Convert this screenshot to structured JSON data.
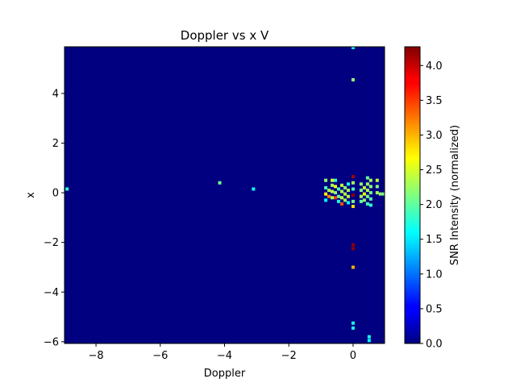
{
  "chart_data": {
    "type": "heatmap",
    "title": "Doppler vs x V",
    "xlabel": "Doppler",
    "ylabel": "x",
    "xlim": [
      -8.98,
      0.98
    ],
    "ylim": [
      -6.07,
      5.88
    ],
    "xticks": [
      -8,
      -6,
      -4,
      -2,
      0
    ],
    "xtick_labels": [
      "−8",
      "−6",
      "−4",
      "−2",
      "0"
    ],
    "yticks": [
      -6,
      -4,
      -2,
      0,
      2,
      4
    ],
    "ytick_labels": [
      "−6",
      "−4",
      "−2",
      "0",
      "2",
      "4"
    ],
    "background_value": 0.0,
    "colormap": "jet",
    "colorbar": {
      "label": "SNR Intensity (normalized)",
      "range": [
        0.0,
        4.27
      ],
      "ticks": [
        0.0,
        0.5,
        1.0,
        1.5,
        2.0,
        2.5,
        3.0,
        3.5,
        4.0
      ],
      "tick_labels": [
        "0.0",
        "0.5",
        "1.0",
        "1.5",
        "2.0",
        "2.5",
        "3.0",
        "3.5",
        "4.0"
      ]
    },
    "cell_size": {
      "doppler": 0.1,
      "x": 0.13
    },
    "cells": [
      {
        "doppler": -8.9,
        "x": 0.15,
        "value": 1.8
      },
      {
        "doppler": -4.15,
        "x": 0.4,
        "value": 2.1
      },
      {
        "doppler": -3.1,
        "x": 0.15,
        "value": 1.7
      },
      {
        "doppler": -0.85,
        "x": 0.5,
        "value": 2.2
      },
      {
        "doppler": -0.85,
        "x": 0.2,
        "value": 1.9
      },
      {
        "doppler": -0.85,
        "x": -0.05,
        "value": 2.7
      },
      {
        "doppler": -0.85,
        "x": -0.3,
        "value": 1.6
      },
      {
        "doppler": -0.75,
        "x": 0.1,
        "value": 2.3
      },
      {
        "doppler": -0.75,
        "x": -0.15,
        "value": 3.2
      },
      {
        "doppler": -0.65,
        "x": 0.5,
        "value": 2.5
      },
      {
        "doppler": -0.65,
        "x": 0.3,
        "value": 2.3
      },
      {
        "doppler": -0.65,
        "x": 0.05,
        "value": 2.4
      },
      {
        "doppler": -0.65,
        "x": -0.2,
        "value": 2.3
      },
      {
        "doppler": -0.55,
        "x": 0.5,
        "value": 1.8
      },
      {
        "doppler": -0.55,
        "x": 0.25,
        "value": 2.6
      },
      {
        "doppler": -0.55,
        "x": 0.0,
        "value": 2.2
      },
      {
        "doppler": -0.55,
        "x": -0.2,
        "value": 3.5
      },
      {
        "doppler": -0.45,
        "x": 0.15,
        "value": 1.9
      },
      {
        "doppler": -0.45,
        "x": -0.15,
        "value": 2.0
      },
      {
        "doppler": -0.45,
        "x": -0.35,
        "value": 1.7
      },
      {
        "doppler": -0.35,
        "x": 0.3,
        "value": 2.4
      },
      {
        "doppler": -0.35,
        "x": 0.05,
        "value": 2.3
      },
      {
        "doppler": -0.35,
        "x": -0.2,
        "value": 2.4
      },
      {
        "doppler": -0.35,
        "x": -0.45,
        "value": 3.4
      },
      {
        "doppler": -0.25,
        "x": 0.2,
        "value": 2.2
      },
      {
        "doppler": -0.25,
        "x": -0.05,
        "value": 2.4
      },
      {
        "doppler": -0.25,
        "x": -0.3,
        "value": 2.3
      },
      {
        "doppler": -0.15,
        "x": 0.35,
        "value": 1.7
      },
      {
        "doppler": -0.15,
        "x": 0.1,
        "value": 2.3
      },
      {
        "doppler": -0.15,
        "x": -0.15,
        "value": 2.4
      },
      {
        "doppler": -0.15,
        "x": -0.4,
        "value": 1.6
      },
      {
        "doppler": 0.0,
        "x": 5.85,
        "value": 1.7
      },
      {
        "doppler": 0.0,
        "x": 4.55,
        "value": 2.2
      },
      {
        "doppler": 0.0,
        "x": 0.65,
        "value": 4.1
      },
      {
        "doppler": 0.0,
        "x": 0.4,
        "value": 2.3
      },
      {
        "doppler": 0.0,
        "x": 0.15,
        "value": 1.9
      },
      {
        "doppler": 0.0,
        "x": -0.1,
        "value": 4.2
      },
      {
        "doppler": 0.0,
        "x": -0.35,
        "value": 2.1
      },
      {
        "doppler": 0.0,
        "x": -0.55,
        "value": 2.8
      },
      {
        "doppler": 0.0,
        "x": -2.1,
        "value": 4.2
      },
      {
        "doppler": 0.0,
        "x": -2.25,
        "value": 4.2
      },
      {
        "doppler": 0.0,
        "x": -3.0,
        "value": 3.0
      },
      {
        "doppler": 0.0,
        "x": -5.25,
        "value": 1.7
      },
      {
        "doppler": 0.0,
        "x": -5.45,
        "value": 1.7
      },
      {
        "doppler": 0.25,
        "x": 0.35,
        "value": 2.2
      },
      {
        "doppler": 0.25,
        "x": 0.1,
        "value": 2.1
      },
      {
        "doppler": 0.25,
        "x": -0.15,
        "value": 2.3
      },
      {
        "doppler": 0.25,
        "x": -0.35,
        "value": 2.0
      },
      {
        "doppler": 0.35,
        "x": 0.2,
        "value": 2.4
      },
      {
        "doppler": 0.35,
        "x": -0.05,
        "value": 2.6
      },
      {
        "doppler": 0.35,
        "x": -0.3,
        "value": 2.2
      },
      {
        "doppler": 0.45,
        "x": 0.6,
        "value": 2.0
      },
      {
        "doppler": 0.45,
        "x": 0.35,
        "value": 2.2
      },
      {
        "doppler": 0.45,
        "x": 0.1,
        "value": 2.3
      },
      {
        "doppler": 0.45,
        "x": -0.15,
        "value": 2.1
      },
      {
        "doppler": 0.45,
        "x": -0.45,
        "value": 1.9
      },
      {
        "doppler": 0.55,
        "x": 0.5,
        "value": 2.3
      },
      {
        "doppler": 0.55,
        "x": 0.25,
        "value": 2.2
      },
      {
        "doppler": 0.55,
        "x": 0.0,
        "value": 2.1
      },
      {
        "doppler": 0.55,
        "x": -0.25,
        "value": 2.0
      },
      {
        "doppler": 0.55,
        "x": -0.5,
        "value": 1.8
      },
      {
        "doppler": 0.5,
        "x": -5.8,
        "value": 1.7
      },
      {
        "doppler": 0.5,
        "x": -5.95,
        "value": 1.6
      },
      {
        "doppler": 0.75,
        "x": 0.5,
        "value": 2.4
      },
      {
        "doppler": 0.75,
        "x": 0.25,
        "value": 2.2
      },
      {
        "doppler": 0.75,
        "x": 0.0,
        "value": 2.3
      },
      {
        "doppler": 0.85,
        "x": -0.05,
        "value": 2.2
      },
      {
        "doppler": 0.95,
        "x": -0.05,
        "value": 2.1
      }
    ]
  }
}
